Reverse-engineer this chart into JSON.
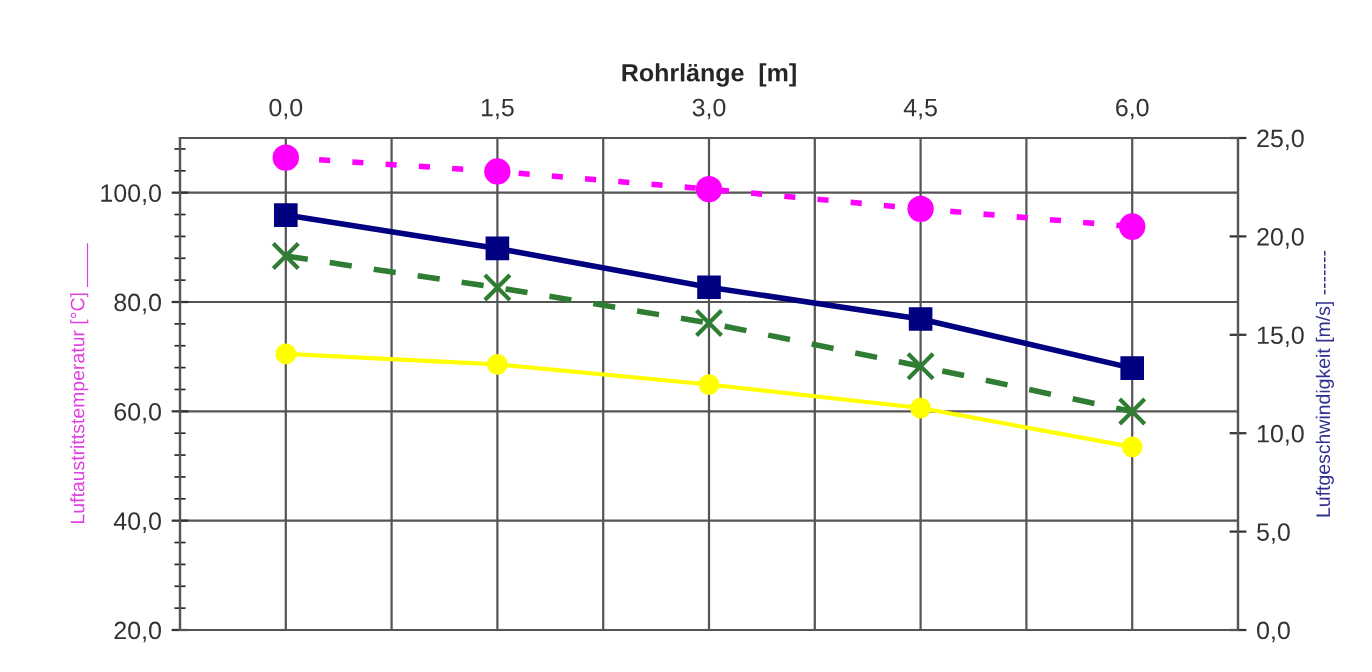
{
  "chart_data": {
    "type": "line",
    "xlabel": "Rohrlänge  [m]",
    "ylabel": "Luftaustrittstemperatur [°C] ____",
    "y2label": "Luftgeschwindigkeit [m/s] -------",
    "x": [
      0,
      1.5,
      3.0,
      4.5,
      6.0
    ],
    "xlim": [
      -0.75,
      6.75
    ],
    "xticks": [
      {
        "value": 0,
        "label": "0,0"
      },
      {
        "value": 0.75,
        "label": null
      },
      {
        "value": 1.5,
        "label": "1,5"
      },
      {
        "value": 2.25,
        "label": null
      },
      {
        "value": 3.0,
        "label": "3,0"
      },
      {
        "value": 3.75,
        "label": null
      },
      {
        "value": 4.5,
        "label": "4,5"
      },
      {
        "value": 5.25,
        "label": null
      },
      {
        "value": 6.0,
        "label": "6,0"
      }
    ],
    "ylim": [
      20,
      110
    ],
    "yticks": [
      {
        "value": 20,
        "label": "20,0"
      },
      {
        "value": 40,
        "label": "40,0"
      },
      {
        "value": 60,
        "label": "60,0"
      },
      {
        "value": 80,
        "label": "80,0"
      },
      {
        "value": 100,
        "label": "100,0"
      }
    ],
    "y2lim": [
      0,
      25
    ],
    "y2ticks": [
      {
        "value": 0,
        "label": "0,0"
      },
      {
        "value": 5,
        "label": "5,0"
      },
      {
        "value": 10,
        "label": "10,0"
      },
      {
        "value": 15,
        "label": "15,0"
      },
      {
        "value": 20,
        "label": "20,0"
      },
      {
        "value": 25,
        "label": "25,0"
      }
    ],
    "grid": true,
    "series": [
      {
        "color": "#ff00ff",
        "axis": "y2",
        "marker": "circle",
        "line_style": "dotted",
        "values": [
          24.0,
          23.3,
          22.4,
          21.4,
          20.5
        ]
      },
      {
        "color": "#000080",
        "marker": "square",
        "line_style": "solid",
        "values": [
          95.9,
          89.8,
          82.7,
          76.9,
          67.9
        ]
      },
      {
        "color": "#2e7d32",
        "axis": "y2",
        "marker": "cross",
        "line_style": "dashed",
        "values": [
          19.0,
          17.4,
          15.6,
          13.4,
          11.1
        ]
      },
      {
        "color": "#ffff00",
        "marker": "circle",
        "line_style": "solid",
        "values": [
          70.5,
          68.6,
          64.9,
          60.6,
          53.5
        ]
      }
    ]
  }
}
